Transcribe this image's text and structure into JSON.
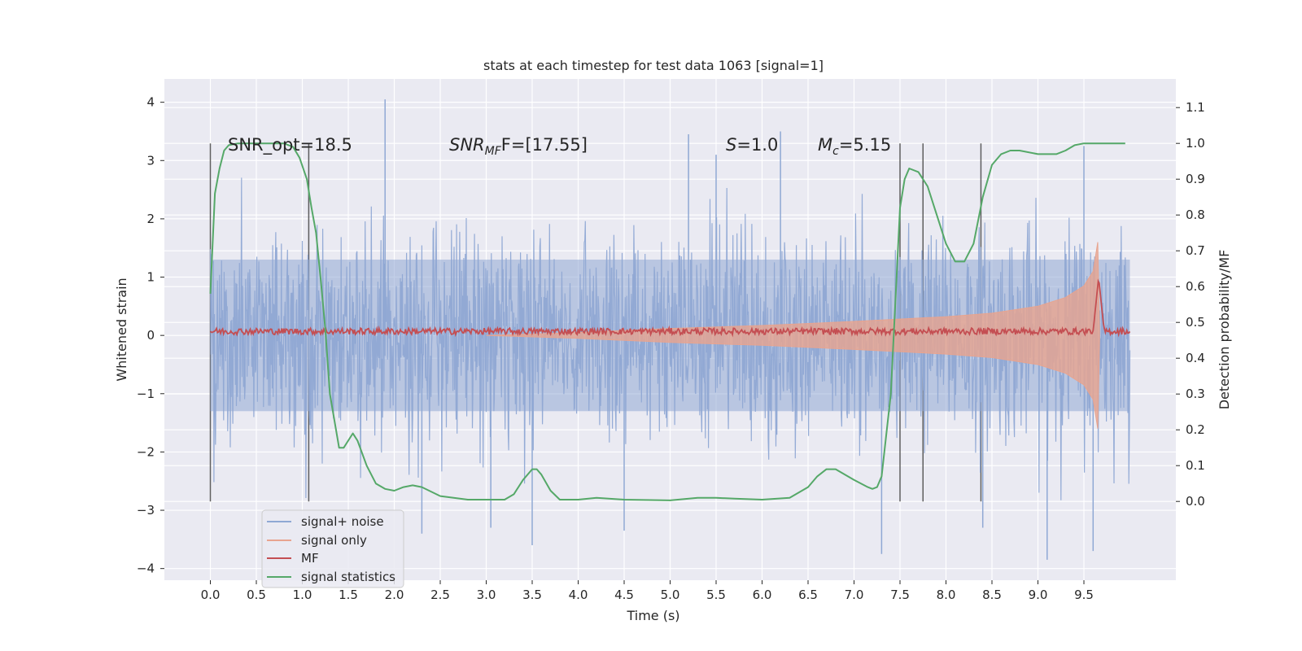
{
  "chart_data": {
    "type": "line",
    "title": "stats at each timestep for test data 1063 [signal=1]",
    "xlabel": "Time (s)",
    "ylabel": "Whitened strain",
    "ylabel_right": "Detection probability/MF",
    "xlim": [
      -0.5,
      10.5
    ],
    "ylim": [
      -4.2,
      4.4
    ],
    "ylim_right": [
      -0.22,
      1.18
    ],
    "x_ticks": [
      "0.0",
      "0.5",
      "1.0",
      "1.5",
      "2.0",
      "2.5",
      "3.0",
      "3.5",
      "4.0",
      "4.5",
      "5.0",
      "5.5",
      "6.0",
      "6.5",
      "7.0",
      "7.5",
      "8.0",
      "8.5",
      "9.0",
      "9.5"
    ],
    "y_ticks": [
      "4",
      "3",
      "2",
      "1",
      "0",
      "−1",
      "−2",
      "−3",
      "−4"
    ],
    "y_ticks_right": [
      "1.1",
      "1.0",
      "0.9",
      "0.8",
      "0.7",
      "0.6",
      "0.5",
      "0.4",
      "0.3",
      "0.2",
      "0.1",
      "0.0"
    ],
    "grid": true,
    "legend_position": "lower-left",
    "annotations": {
      "snr_opt": "SNR_opt=18.5",
      "snr_mf_main": "SNR",
      "snr_mf_sub": "MF",
      "snr_mf_rest": "F=[17.55]",
      "s_main": "S",
      "s_rest": "=1.0",
      "mc_main": "M",
      "mc_sub": "c",
      "mc_rest": "=5.15"
    },
    "vertical_lines_x": [
      0.0,
      1.07,
      7.5,
      7.75,
      8.38
    ],
    "series": [
      {
        "name": "signal+ noise",
        "color": "#8fa8d4",
        "axis": "left",
        "amplitude_envelope": 2.0,
        "spikes": [
          [
            1.9,
            4.05
          ],
          [
            5.2,
            3.45
          ],
          [
            6.2,
            3.5
          ],
          [
            3.05,
            -3.3
          ],
          [
            3.5,
            -3.6
          ],
          [
            4.5,
            -3.35
          ],
          [
            7.3,
            -3.75
          ],
          [
            8.4,
            -3.3
          ],
          [
            9.1,
            -3.85
          ],
          [
            9.6,
            -3.7
          ],
          [
            2.3,
            -3.4
          ],
          [
            5.5,
            3.1
          ],
          [
            9.5,
            3.25
          ]
        ]
      },
      {
        "name": "signal only",
        "color": "#e8a48f",
        "axis": "left",
        "envelope": [
          [
            3.0,
            0.0
          ],
          [
            4.0,
            0.05
          ],
          [
            5.0,
            0.12
          ],
          [
            6.0,
            0.17
          ],
          [
            7.0,
            0.24
          ],
          [
            8.0,
            0.32
          ],
          [
            8.5,
            0.38
          ],
          [
            9.0,
            0.5
          ],
          [
            9.3,
            0.65
          ],
          [
            9.5,
            0.85
          ],
          [
            9.6,
            1.1
          ],
          [
            9.65,
            1.6
          ],
          [
            9.67,
            0.1
          ]
        ]
      },
      {
        "name": "MF",
        "color": "#c44e52",
        "axis": "left",
        "baseline": 0.07,
        "peak": [
          9.66,
          1.0
        ]
      },
      {
        "name": "signal statistics",
        "color": "#55a868",
        "axis": "right",
        "x": [
          0.0,
          0.05,
          0.1,
          0.15,
          0.2,
          0.3,
          0.4,
          0.6,
          0.8,
          0.9,
          0.97,
          1.05,
          1.1,
          1.15,
          1.2,
          1.25,
          1.3,
          1.4,
          1.45,
          1.5,
          1.55,
          1.6,
          1.7,
          1.8,
          1.9,
          2.0,
          2.1,
          2.2,
          2.3,
          2.5,
          2.8,
          3.2,
          3.3,
          3.4,
          3.5,
          3.55,
          3.6,
          3.7,
          3.8,
          4.0,
          4.2,
          4.5,
          5.0,
          5.3,
          5.5,
          5.7,
          6.0,
          6.3,
          6.5,
          6.6,
          6.7,
          6.8,
          7.0,
          7.15,
          7.2,
          7.25,
          7.3,
          7.4,
          7.5,
          7.55,
          7.6,
          7.7,
          7.8,
          7.9,
          8.0,
          8.1,
          8.2,
          8.3,
          8.4,
          8.5,
          8.6,
          8.7,
          8.8,
          9.0,
          9.2,
          9.3,
          9.4,
          9.5,
          9.6,
          9.8,
          9.95
        ],
        "values": [
          0.58,
          0.86,
          0.93,
          0.98,
          0.995,
          1.0,
          1.0,
          1.0,
          1.0,
          0.99,
          0.96,
          0.9,
          0.82,
          0.75,
          0.62,
          0.48,
          0.3,
          0.15,
          0.15,
          0.17,
          0.19,
          0.17,
          0.1,
          0.05,
          0.035,
          0.03,
          0.04,
          0.045,
          0.04,
          0.015,
          0.005,
          0.005,
          0.02,
          0.06,
          0.09,
          0.09,
          0.075,
          0.03,
          0.005,
          0.005,
          0.01,
          0.005,
          0.003,
          0.01,
          0.01,
          0.008,
          0.005,
          0.01,
          0.04,
          0.07,
          0.09,
          0.09,
          0.06,
          0.04,
          0.035,
          0.04,
          0.07,
          0.3,
          0.82,
          0.9,
          0.93,
          0.92,
          0.88,
          0.8,
          0.72,
          0.67,
          0.67,
          0.72,
          0.85,
          0.94,
          0.97,
          0.98,
          0.98,
          0.97,
          0.97,
          0.98,
          0.995,
          1.0,
          1.0,
          1.0,
          1.0
        ]
      }
    ]
  }
}
